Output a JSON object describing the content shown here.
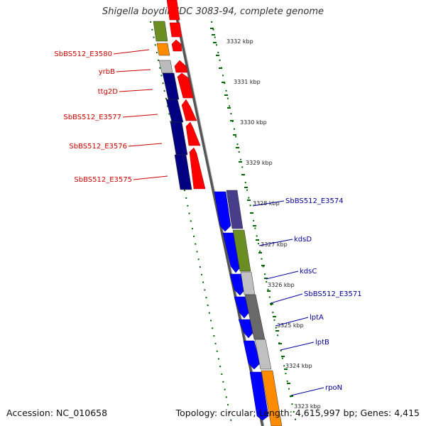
{
  "header": {
    "title": "Shigella boydii CDC 3083-94, complete genome"
  },
  "footer": {
    "accession": "Accession: NC_010658",
    "info": "Topology: circular; Length: 4,615,997 bp; Genes: 4,415"
  },
  "map": {
    "ticks": [
      "3332 kbp",
      "3331 kbp",
      "3330 kbp",
      "3329 kbp",
      "3328 kbp",
      "3327 kbp",
      "3326 kbp",
      "3325 kbp",
      "3324 kbp",
      "3323 kbp"
    ],
    "left_genes": [
      "SbBS512_E3580",
      "yrbB",
      "ttg2D",
      "SbBS512_E3577",
      "SbBS512_E3576",
      "SbBS512_E3575"
    ],
    "right_genes": [
      "SbBS512_E3574",
      "kdsD",
      "kdsC",
      "SbBS512_E3571",
      "lptA",
      "lptB",
      "rpoN"
    ],
    "colors": {
      "left_label": "#cc0000",
      "right_label": "#000099",
      "tick": "#006600",
      "reverse_cds": "#ff0000",
      "forward_cds": "#0000ff",
      "cog_dark_blue": "#000080",
      "cog_green": "#6b8e23",
      "cog_orange": "#ff8c00",
      "cog_gray": "#a9a9a9",
      "cog_dark_gray": "#696969",
      "cog_purple": "#483d8b",
      "backbone": "#666666"
    }
  }
}
